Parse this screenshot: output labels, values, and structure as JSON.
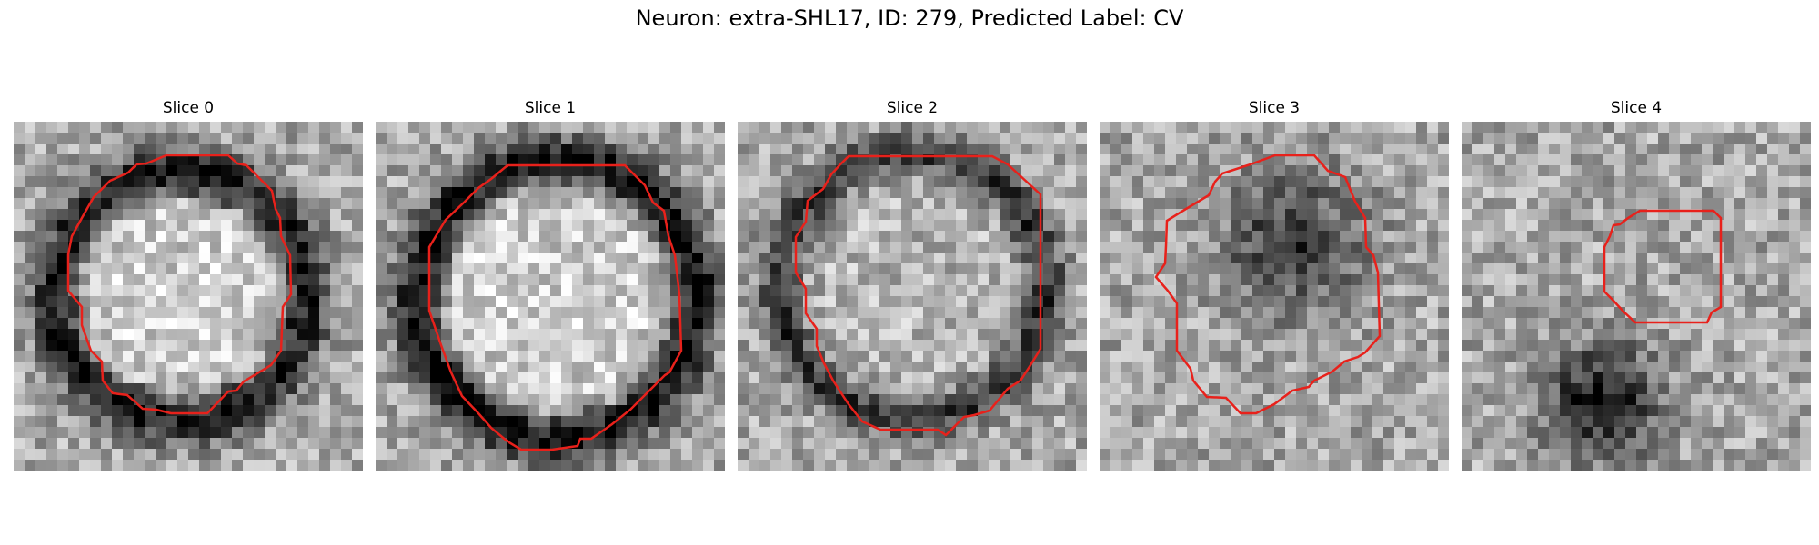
{
  "figure": {
    "title": "Neuron: extra-SHL17, ID: 279, Predicted Label: CV",
    "contour_color": "#e8211b",
    "colormap": "gray"
  },
  "panels": [
    {
      "title": "Slice 0"
    },
    {
      "title": "Slice 1"
    },
    {
      "title": "Slice 2"
    },
    {
      "title": "Slice 3"
    },
    {
      "title": "Slice 4"
    }
  ]
}
